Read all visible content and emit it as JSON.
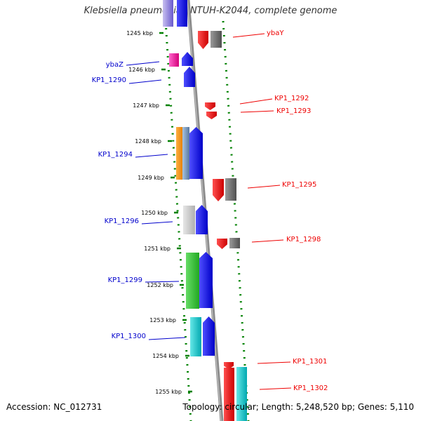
{
  "title": "Klebsiella pneumoniae NTUH-K2044, complete genome",
  "footer": {
    "accession": "Accession: NC_012731",
    "summary": "Topology: circular; Length: 5,248,520 bp; Genes: 5,110"
  },
  "colors": {
    "dots": "#008000",
    "backbone": "#8c8c8c",
    "left_label": "#0000cc",
    "right_label": "#ee0000"
  },
  "scale_ticks": [
    "1245 kbp",
    "1246 kbp",
    "1247 kbp",
    "1248 kbp",
    "1249 kbp",
    "1250 kbp",
    "1251 kbp",
    "1252 kbp",
    "1253 kbp",
    "1254 kbp",
    "1255 kbp"
  ],
  "gene_labels_left": [
    "ybaZ",
    "KP1_1290",
    "KP1_1294",
    "KP1_1296",
    "KP1_1299",
    "KP1_1300"
  ],
  "gene_labels_right": [
    "ybaY",
    "KP1_1292",
    "KP1_1293",
    "KP1_1295",
    "KP1_1298",
    "KP1_1301",
    "KP1_1302"
  ]
}
